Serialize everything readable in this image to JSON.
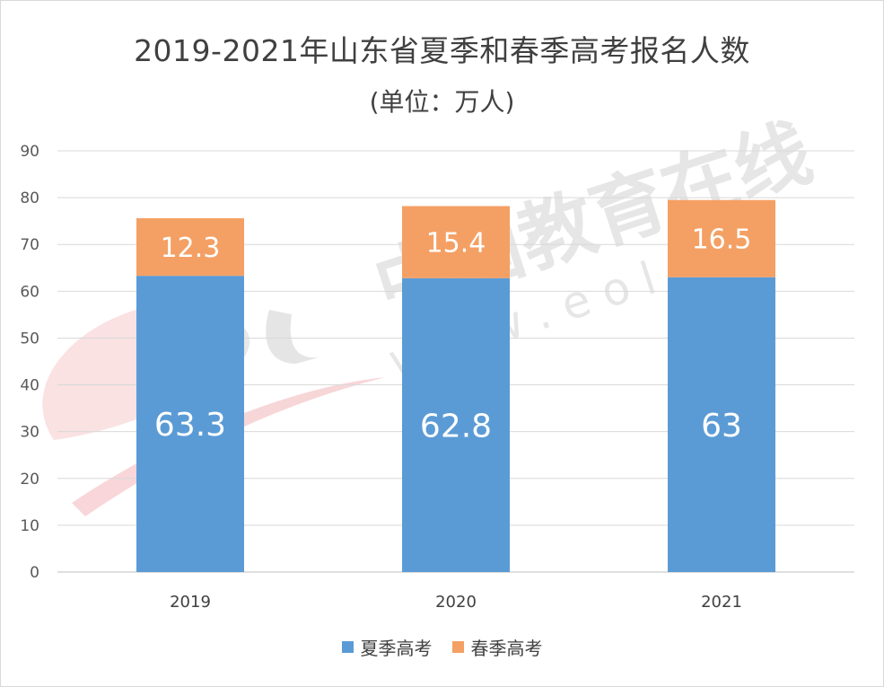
{
  "chart_data": {
    "type": "bar",
    "stacked": true,
    "title": "2019-2021年山东省夏季和春季高考报名人数",
    "subtitle": "(单位：万人)",
    "categories": [
      "2019",
      "2020",
      "2021"
    ],
    "series": [
      {
        "name": "夏季高考",
        "values": [
          63.3,
          62.8,
          63
        ],
        "labels": [
          "63.3",
          "62.8",
          "63"
        ],
        "color": "#5b9bd5"
      },
      {
        "name": "春季高考",
        "values": [
          12.3,
          15.4,
          16.5
        ],
        "labels": [
          "12.3",
          "15.4",
          "16.5"
        ],
        "color": "#f4a064"
      }
    ],
    "ylim": [
      0,
      90
    ],
    "yticks": [
      "0",
      "10",
      "20",
      "30",
      "40",
      "50",
      "60",
      "70",
      "80",
      "90"
    ],
    "grid": true,
    "legend_position": "bottom"
  },
  "watermark": {
    "text": "中国教育在线",
    "url_text": "w w w . e o l . c n"
  }
}
